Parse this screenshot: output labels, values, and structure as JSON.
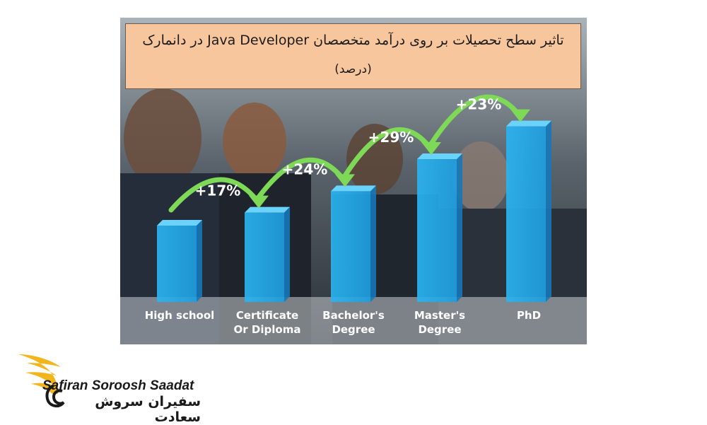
{
  "chart_data": {
    "type": "bar",
    "title": "تاثیر سطح تحصیلات بر روی درآمد متخصصان Java Developer در دانمارک",
    "subtitle": "(درصد)",
    "categories": [
      "High school",
      "Certificate Or Diploma",
      "Bachelor's Degree",
      "Master's Degree",
      "PhD"
    ],
    "category_lines": [
      [
        "High school"
      ],
      [
        "Certificate",
        "Or Diploma"
      ],
      [
        "Bachelor's",
        "Degree"
      ],
      [
        "Master's",
        "Degree"
      ],
      [
        "PhD"
      ]
    ],
    "values": [
      100,
      117,
      145,
      187,
      230
    ],
    "growth_labels": [
      "+17%",
      "+24%",
      "+29%",
      "+23%"
    ],
    "ylim": [
      0,
      250
    ],
    "grid": false,
    "legend": "none",
    "bar_color": "#2ab4f0",
    "arrow_color": "#7ed957"
  },
  "brand": {
    "name_en": "Safiran Soroosh Saadat",
    "name_fa": "سفیران سروش سعادت",
    "wing_color": "#f2b51c"
  }
}
